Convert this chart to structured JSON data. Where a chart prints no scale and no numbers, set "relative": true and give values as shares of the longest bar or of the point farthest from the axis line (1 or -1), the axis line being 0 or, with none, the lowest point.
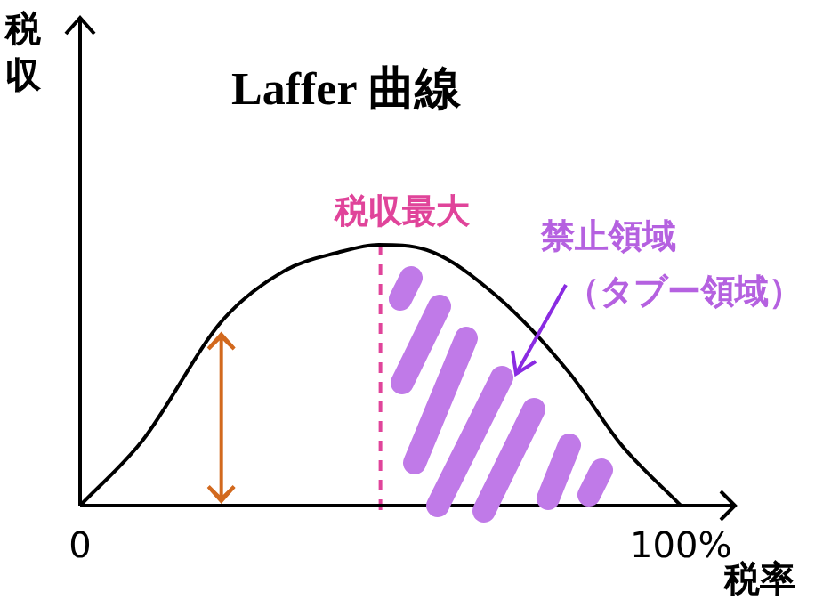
{
  "chart_data": {
    "type": "line",
    "title": "Laffer 曲線",
    "xlabel": "税率",
    "ylabel": "税収",
    "relative": true,
    "x": [
      0,
      10.4,
      23.7,
      34,
      42.9,
      49.7,
      57.7,
      69.5,
      81.4,
      90.2,
      100
    ],
    "values": [
      0,
      0.25,
      0.71,
      0.9,
      0.97,
      1,
      0.98,
      0.8,
      0.51,
      0.23,
      0
    ],
    "color": "#000000",
    "marker": "none",
    "xlim": [
      0,
      109
    ],
    "xticks": [
      0,
      {
        "value": 100,
        "label": "100%"
      }
    ],
    "tick_labels": "x",
    "ref_lines": [
      {
        "axis": "x",
        "value": 50,
        "label": "税収最大",
        "color": "#e0449a",
        "line_style": "dashed"
      }
    ],
    "annotations": [
      "禁止領域",
      "（タブー領域）"
    ],
    "grid": false,
    "legend": false
  }
}
